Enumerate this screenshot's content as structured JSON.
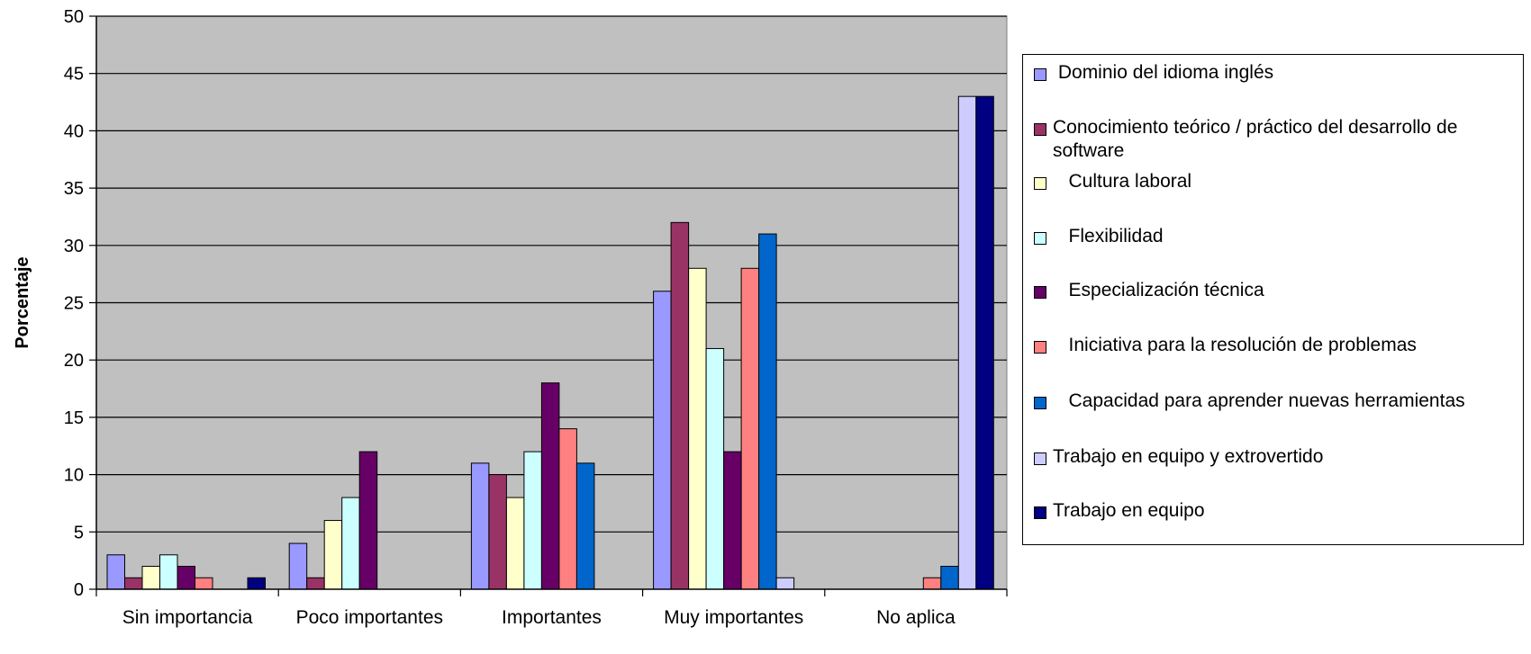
{
  "chart_data": {
    "type": "bar",
    "title": "",
    "xlabel": "",
    "ylabel": "Porcentaje",
    "ylim": [
      0,
      50
    ],
    "yticks": [
      0,
      5,
      10,
      15,
      20,
      25,
      30,
      35,
      40,
      45,
      50
    ],
    "grid": true,
    "legend_position": "right",
    "plot_background": "#C0C0C0",
    "categories": [
      "Sin importancia",
      "Poco importantes",
      "Importantes",
      "Muy importantes",
      "No aplica"
    ],
    "series": [
      {
        "name": " Dominio del idioma inglés",
        "color": "#9999FF",
        "values": [
          3,
          4,
          11,
          26,
          null
        ]
      },
      {
        "name": "Conocimiento teórico / práctico del desarrollo de software",
        "color": "#993366",
        "values": [
          1,
          1,
          10,
          32,
          null
        ]
      },
      {
        "name": "   Cultura laboral",
        "color": "#FFFFCC",
        "values": [
          2,
          6,
          8,
          28,
          null
        ]
      },
      {
        "name": "   Flexibilidad",
        "color": "#CCFFFF",
        "values": [
          3,
          8,
          12,
          21,
          null
        ]
      },
      {
        "name": "   Especialización técnica",
        "color": "#660066",
        "values": [
          2,
          12,
          18,
          12,
          null
        ]
      },
      {
        "name": "   Iniciativa para la resolución de problemas",
        "color": "#FF8080",
        "values": [
          1,
          null,
          14,
          28,
          1
        ]
      },
      {
        "name": "   Capacidad para aprender nuevas herramientas",
        "color": "#0066CC",
        "values": [
          null,
          null,
          11,
          31,
          2
        ]
      },
      {
        "name": "Trabajo en equipo y extrovertido",
        "color": "#CCCCFF",
        "values": [
          null,
          null,
          null,
          1,
          43
        ]
      },
      {
        "name": "Trabajo en equipo",
        "color": "#000080",
        "values": [
          1,
          null,
          null,
          null,
          43
        ]
      }
    ]
  }
}
